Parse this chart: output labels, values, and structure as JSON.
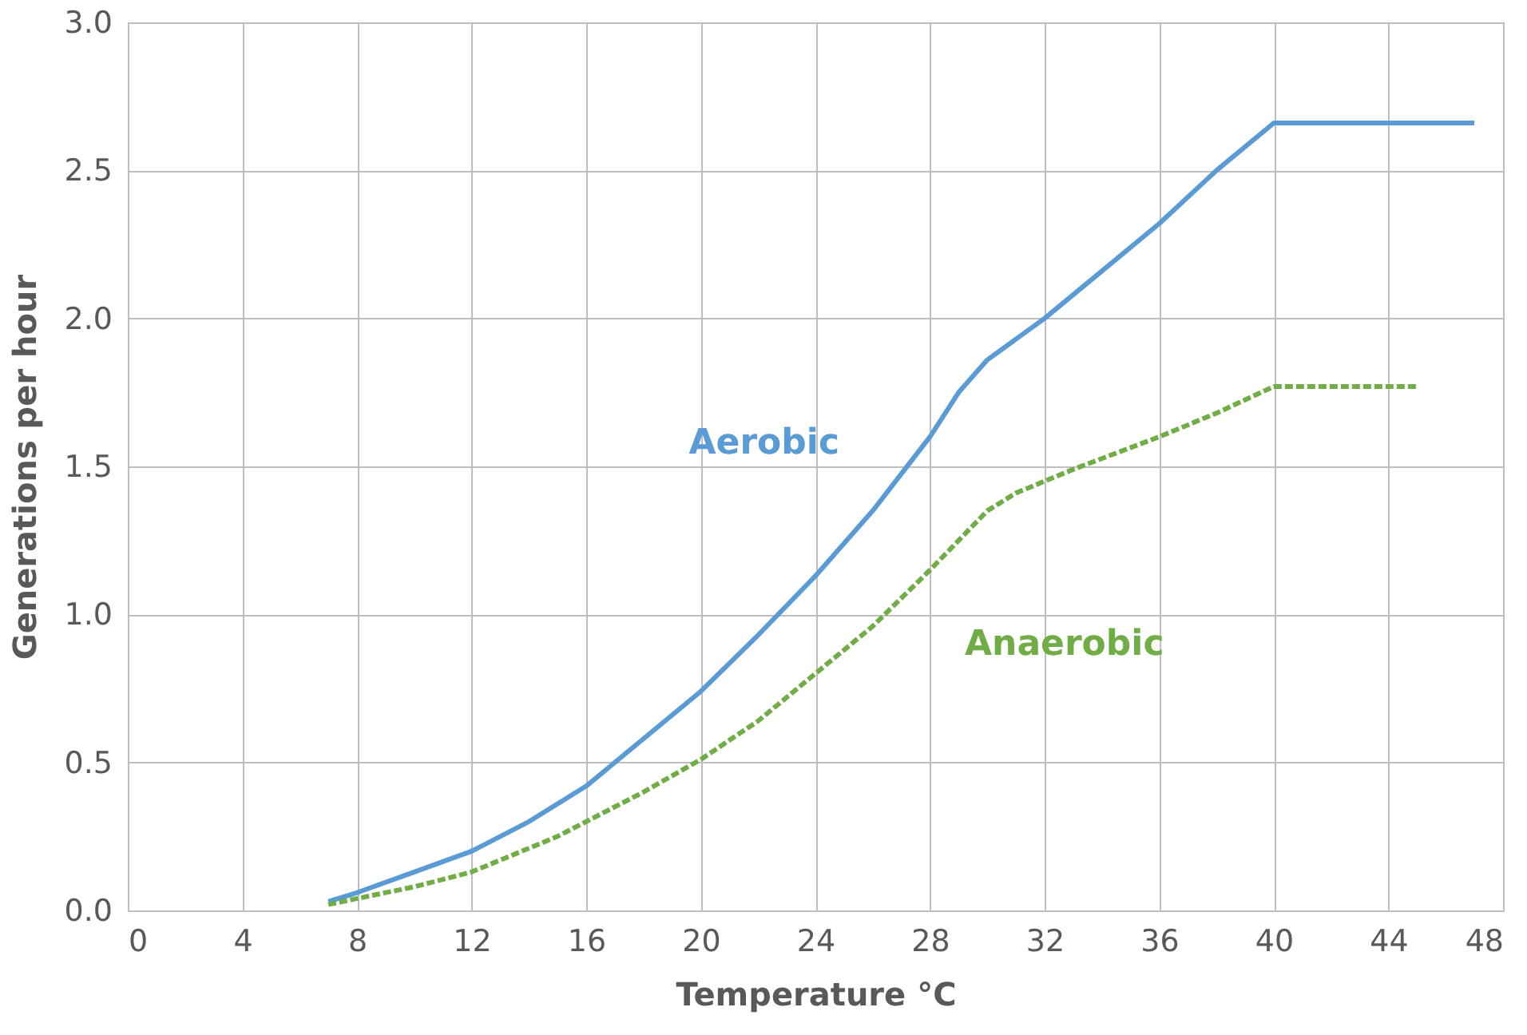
{
  "chart_data": {
    "type": "line",
    "xlabel": "Temperature °C",
    "ylabel": "Generations per hour",
    "xlim": [
      0,
      48
    ],
    "xticks": [
      0,
      4,
      8,
      12,
      16,
      20,
      24,
      28,
      32,
      36,
      40,
      44,
      48
    ],
    "ylim": [
      0,
      3.0
    ],
    "yticks": [
      {
        "value": 0,
        "label": "0.0"
      },
      {
        "value": 0.5,
        "label": "0.5"
      },
      {
        "value": 1,
        "label": "1.0"
      },
      {
        "value": 1.5,
        "label": "1.5"
      },
      {
        "value": 2,
        "label": "2.0"
      },
      {
        "value": 2.5,
        "label": "2.5"
      },
      {
        "value": 3,
        "label": "3.0"
      }
    ],
    "grid": true,
    "legend": false,
    "series": [
      {
        "name": "Aerobic",
        "color": "#5b9bd5",
        "line_style": "solid",
        "x": [
          7,
          8,
          10,
          12,
          14,
          16,
          18,
          20,
          22,
          24,
          26,
          28,
          29,
          30,
          32,
          34,
          36,
          38,
          40,
          47
        ],
        "values": [
          0.03,
          0.06,
          0.13,
          0.2,
          0.3,
          0.42,
          0.58,
          0.74,
          0.93,
          1.13,
          1.35,
          1.6,
          1.75,
          1.86,
          2.0,
          2.16,
          2.32,
          2.5,
          2.66,
          2.66
        ]
      },
      {
        "name": "Anaerobic",
        "color": "#70ad47",
        "line_style": "dashed",
        "x": [
          7,
          10,
          12,
          15,
          18,
          20,
          22,
          24,
          26,
          28,
          30,
          31,
          33,
          36,
          38,
          40,
          45
        ],
        "values": [
          0.02,
          0.08,
          0.13,
          0.25,
          0.4,
          0.51,
          0.64,
          0.8,
          0.96,
          1.15,
          1.35,
          1.41,
          1.49,
          1.6,
          1.68,
          1.77,
          1.77
        ]
      }
    ]
  }
}
